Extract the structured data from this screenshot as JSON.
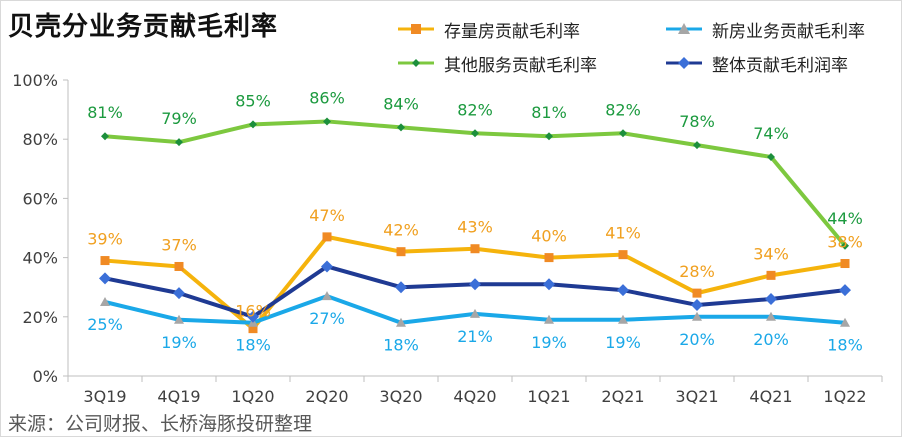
{
  "title": "贝壳分业务贡献毛利率",
  "source": "来源：公司财报、长桥海豚投研整理",
  "colors": {
    "existing": "#F5B30C",
    "new": "#1AA8E8",
    "other": "#7DC83F",
    "overall": "#1F3A93",
    "axis": "#bfbfbf",
    "text": "#404040"
  },
  "chart_data": {
    "type": "line",
    "title": "贝壳分业务贡献毛利率",
    "categories": [
      "3Q19",
      "4Q19",
      "1Q20",
      "2Q20",
      "3Q20",
      "4Q20",
      "1Q21",
      "2Q21",
      "3Q21",
      "4Q21",
      "1Q22"
    ],
    "ylim": [
      0,
      100
    ],
    "yticks": [
      "0%",
      "20%",
      "40%",
      "60%",
      "80%",
      "100%"
    ],
    "legend_position": "top-right",
    "series": [
      {
        "key": "existing",
        "name": "存量房贡献毛利率",
        "marker": "square",
        "values": [
          39,
          37,
          16,
          47,
          42,
          43,
          40,
          41,
          28,
          34,
          38
        ],
        "labels": [
          "39%",
          "37%",
          "16%",
          "47%",
          "42%",
          "43%",
          "40%",
          "41%",
          "28%",
          "34%",
          "38%"
        ]
      },
      {
        "key": "new",
        "name": "新房业务贡献毛利率",
        "marker": "triangle",
        "values": [
          25,
          19,
          18,
          27,
          18,
          21,
          19,
          19,
          20,
          20,
          18
        ],
        "labels": [
          "25%",
          "19%",
          "18%",
          "27%",
          "18%",
          "21%",
          "19%",
          "19%",
          "20%",
          "20%",
          "18%"
        ]
      },
      {
        "key": "other",
        "name": "其他服务贡献毛利率",
        "marker": "diamond-small",
        "values": [
          81,
          79,
          85,
          86,
          84,
          82,
          81,
          82,
          78,
          74,
          44
        ],
        "labels": [
          "81%",
          "79%",
          "85%",
          "86%",
          "84%",
          "82%",
          "81%",
          "82%",
          "78%",
          "74%",
          "44%"
        ]
      },
      {
        "key": "overall",
        "name": "整体贡献毛利润率",
        "marker": "diamond",
        "values": [
          33,
          28,
          20,
          37,
          30,
          31,
          31,
          29,
          24,
          26,
          29
        ],
        "labels": []
      }
    ]
  }
}
